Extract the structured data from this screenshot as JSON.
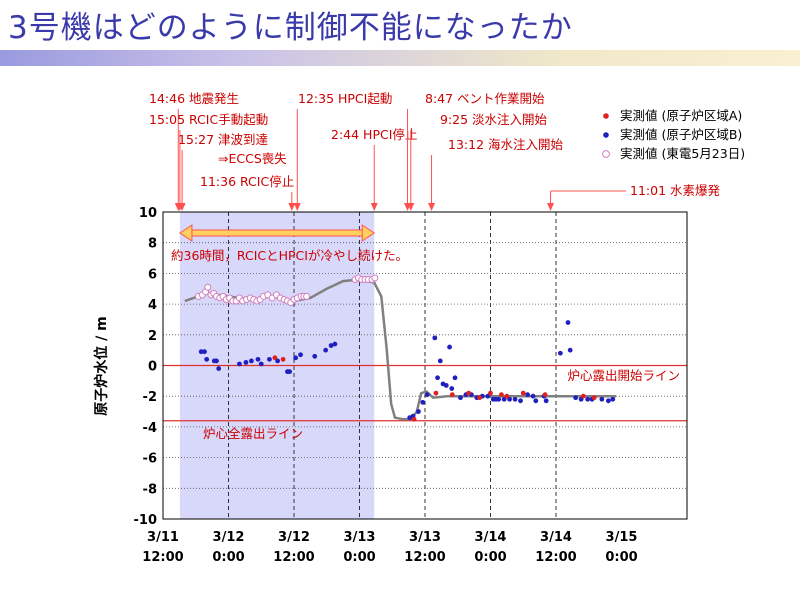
{
  "title": "3号機はどのように制御不能になったか",
  "colors": {
    "series_a": "#e02020",
    "series_b": "#2020c0",
    "series_c": "#d080c0",
    "trend": "#808080",
    "shade": "#d8d8fa",
    "arrow": "#ff5050",
    "annotation": "#cc0000",
    "hline": "#e03030",
    "title": "#3a3aaa"
  },
  "chart_data": {
    "type": "scatter",
    "ylabel": "原子炉水位 / m",
    "ylim": [
      -10,
      10
    ],
    "y_ticks": [
      "10",
      "8",
      "6",
      "4",
      "2",
      "0",
      "-2",
      "-4",
      "-6",
      "-8",
      "-10"
    ],
    "xlim": [
      0,
      96
    ],
    "x_ticks": [
      {
        "x": 0,
        "l1": "3/11",
        "l2": "12:00"
      },
      {
        "x": 12,
        "l1": "3/12",
        "l2": "0:00"
      },
      {
        "x": 24,
        "l1": "3/12",
        "l2": "12:00"
      },
      {
        "x": 36,
        "l1": "3/13",
        "l2": "0:00"
      },
      {
        "x": 48,
        "l1": "3/13",
        "l2": "12:00"
      },
      {
        "x": 60,
        "l1": "3/14",
        "l2": "0:00"
      },
      {
        "x": 72,
        "l1": "3/14",
        "l2": "12:00"
      },
      {
        "x": 84,
        "l1": "3/15",
        "l2": "0:00"
      }
    ],
    "legend": [
      {
        "marker": "a",
        "label": "実測値 (原子炉区域A)"
      },
      {
        "marker": "b",
        "label": "実測値 (原子炉区域B)"
      },
      {
        "marker": "c",
        "label": "実測値 (東電5月23日)"
      }
    ],
    "events": [
      {
        "label": "14:46 地震発生",
        "x": 2.8
      },
      {
        "label": "15:05 RCIC手動起動",
        "x": 3.1
      },
      {
        "label": "15:27 津波到達",
        "x": 3.5
      },
      {
        "label": "⇒ECCS喪失",
        "x": null
      },
      {
        "label": "11:36 RCIC停止",
        "x": 23.6
      },
      {
        "label": "12:35 HPCI起動",
        "x": 24.6
      },
      {
        "label": "2:44 HPCI停止",
        "x": 38.7
      },
      {
        "label": "8:47 ベント作業開始",
        "x": 44.8
      },
      {
        "label": "9:25 淡水注入開始",
        "x": 45.4
      },
      {
        "label": "13:12 海水注入開始",
        "x": 49.2
      },
      {
        "label": "11:01 水素爆発",
        "x": 71.0
      }
    ],
    "annotations": {
      "cooling": "約36時間，RCICとHPCIが冷やし続けた。",
      "core_exposure_start": "炉心露出開始ライン",
      "core_exposure_full": "炉心全露出ライン"
    },
    "hlines": [
      {
        "y": 0,
        "label_key": "core_exposure_start"
      },
      {
        "y": -3.6,
        "label_key": "core_exposure_full"
      }
    ],
    "shaded_range": [
      3.1,
      38.7
    ],
    "series_a": [
      [
        20.5,
        0.5
      ],
      [
        22,
        0.4
      ],
      [
        46,
        -3.5
      ],
      [
        50,
        -1.8
      ],
      [
        53,
        -1.9
      ],
      [
        56,
        -1.8
      ],
      [
        58,
        -2.1
      ],
      [
        60,
        -1.8
      ],
      [
        62,
        -1.9
      ],
      [
        63,
        -2.0
      ],
      [
        66,
        -1.8
      ],
      [
        70,
        -1.9
      ],
      [
        77,
        -2.0
      ],
      [
        79,
        -2.1
      ]
    ],
    "series_b": [
      [
        7,
        0.9
      ],
      [
        7.6,
        0.9
      ],
      [
        8,
        0.4
      ],
      [
        9.4,
        0.3
      ],
      [
        9.8,
        0.3
      ],
      [
        10.2,
        -0.2
      ],
      [
        14,
        0.1
      ],
      [
        15.2,
        0.2
      ],
      [
        16.2,
        0.3
      ],
      [
        17.4,
        0.4
      ],
      [
        18,
        0.1
      ],
      [
        19.5,
        0.4
      ],
      [
        21,
        0.3
      ],
      [
        22.8,
        -0.4
      ],
      [
        23.2,
        -0.4
      ],
      [
        24.3,
        0.5
      ],
      [
        25.2,
        0.7
      ],
      [
        27.8,
        0.6
      ],
      [
        29.8,
        1.0
      ],
      [
        30.8,
        1.3
      ],
      [
        31.5,
        1.4
      ],
      [
        45.2,
        -3.4
      ],
      [
        45.8,
        -3.3
      ],
      [
        46.8,
        -3.0
      ],
      [
        47.6,
        -2.4
      ],
      [
        48.4,
        -1.9
      ],
      [
        49.8,
        1.8
      ],
      [
        50.3,
        -0.8
      ],
      [
        50.8,
        0.3
      ],
      [
        51.3,
        -1.2
      ],
      [
        51.9,
        -1.3
      ],
      [
        52.5,
        1.2
      ],
      [
        52.9,
        -1.5
      ],
      [
        53.5,
        -0.8
      ],
      [
        54.5,
        -2.1
      ],
      [
        55.5,
        -1.9
      ],
      [
        56.5,
        -1.9
      ],
      [
        57.5,
        -2.1
      ],
      [
        58.5,
        -2.0
      ],
      [
        59.5,
        -2.0
      ],
      [
        60.5,
        -2.2
      ],
      [
        61,
        -2.2
      ],
      [
        61.5,
        -2.2
      ],
      [
        62.5,
        -2.2
      ],
      [
        63.5,
        -2.2
      ],
      [
        64.5,
        -2.2
      ],
      [
        65.5,
        -2.3
      ],
      [
        66.8,
        -1.9
      ],
      [
        67.8,
        -2.0
      ],
      [
        68.3,
        -2.3
      ],
      [
        69.8,
        -2.0
      ],
      [
        70.2,
        -2.3
      ],
      [
        72.8,
        0.8
      ],
      [
        74.2,
        2.8
      ],
      [
        74.6,
        1.0
      ],
      [
        75.6,
        -2.1
      ],
      [
        76.6,
        -2.2
      ],
      [
        77.8,
        -2.2
      ],
      [
        78.6,
        -2.2
      ],
      [
        80.4,
        -2.2
      ],
      [
        81.6,
        -2.3
      ],
      [
        82.4,
        -2.2
      ]
    ],
    "series_c": [
      [
        6.5,
        4.5
      ],
      [
        7.2,
        4.6
      ],
      [
        7.8,
        4.8
      ],
      [
        8.2,
        5.1
      ],
      [
        8.8,
        4.6
      ],
      [
        9.3,
        4.7
      ],
      [
        9.8,
        4.5
      ],
      [
        10.4,
        4.4
      ],
      [
        11,
        4.5
      ],
      [
        11.6,
        4.3
      ],
      [
        12.2,
        4.4
      ],
      [
        12.8,
        4.2
      ],
      [
        13.4,
        4.2
      ],
      [
        14,
        4.4
      ],
      [
        14.6,
        4.2
      ],
      [
        15.3,
        4.3
      ],
      [
        16,
        4.4
      ],
      [
        16.6,
        4.3
      ],
      [
        17.2,
        4.2
      ],
      [
        17.8,
        4.3
      ],
      [
        18.4,
        4.5
      ],
      [
        19.2,
        4.6
      ],
      [
        20,
        4.4
      ],
      [
        20.8,
        4.6
      ],
      [
        21.5,
        4.4
      ],
      [
        22.2,
        4.3
      ],
      [
        22.8,
        4.2
      ],
      [
        23.4,
        4.1
      ],
      [
        24,
        4.3
      ],
      [
        24.6,
        4.4
      ],
      [
        25.3,
        4.5
      ],
      [
        25.8,
        4.5
      ],
      [
        26.3,
        4.5
      ],
      [
        35.2,
        5.6
      ],
      [
        35.8,
        5.7
      ],
      [
        36.4,
        5.6
      ],
      [
        37,
        5.6
      ],
      [
        37.6,
        5.6
      ],
      [
        38.3,
        5.6
      ],
      [
        38.8,
        5.7
      ]
    ],
    "trend": [
      [
        4,
        4.2
      ],
      [
        8,
        4.7
      ],
      [
        12,
        4.5
      ],
      [
        16,
        4.3
      ],
      [
        20,
        4.5
      ],
      [
        24,
        4.2
      ],
      [
        27,
        4.4
      ],
      [
        30,
        5.0
      ],
      [
        33,
        5.5
      ],
      [
        36,
        5.6
      ],
      [
        38.7,
        5.4
      ],
      [
        40,
        4.5
      ],
      [
        41,
        1.0
      ],
      [
        41.8,
        -2.5
      ],
      [
        42.5,
        -3.4
      ],
      [
        44,
        -3.5
      ],
      [
        45.5,
        -3.5
      ],
      [
        46.5,
        -3.0
      ],
      [
        47.3,
        -1.8
      ],
      [
        48.3,
        -1.7
      ],
      [
        49.5,
        -2.1
      ],
      [
        52,
        -2.0
      ],
      [
        60,
        -2.0
      ],
      [
        70,
        -2.0
      ],
      [
        80,
        -2.0
      ],
      [
        83,
        -2.0
      ]
    ]
  }
}
